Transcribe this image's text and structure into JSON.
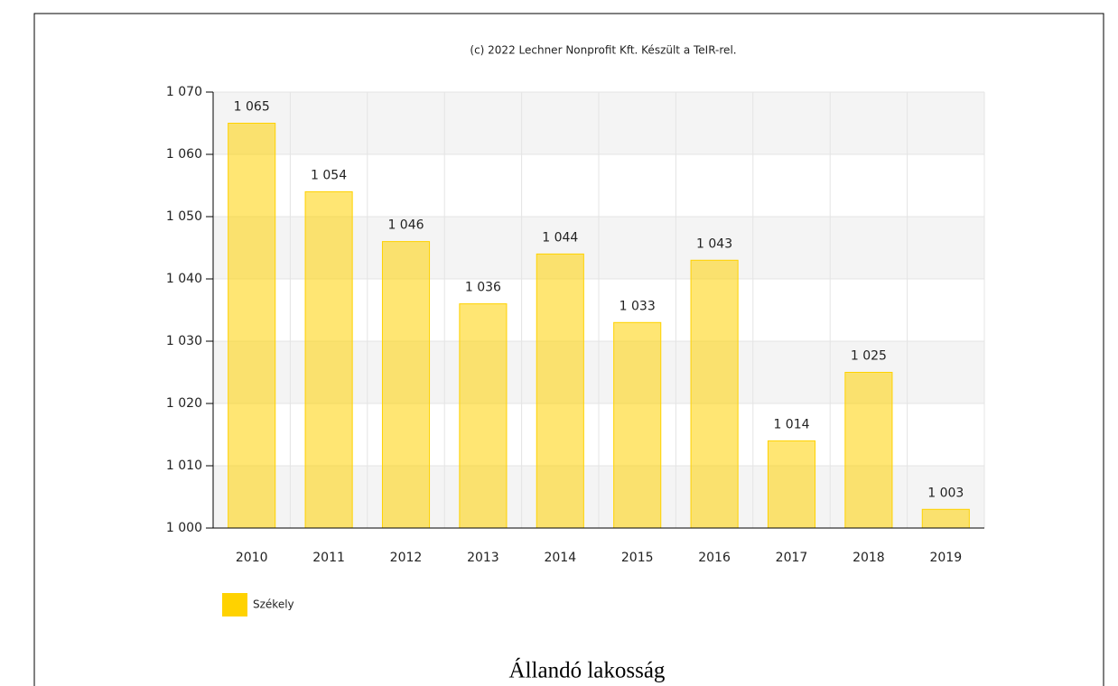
{
  "chart_data": {
    "type": "bar",
    "subtitle": "(c) 2022 Lechner Nonprofit Kft. Készült a TeIR-rel.",
    "caption": "Állandó lakosság",
    "categories": [
      "2010",
      "2011",
      "2012",
      "2013",
      "2014",
      "2015",
      "2016",
      "2017",
      "2018",
      "2019"
    ],
    "series": [
      {
        "name": "Székely",
        "color": "#ffd200",
        "values": [
          1065,
          1054,
          1046,
          1036,
          1044,
          1033,
          1043,
          1014,
          1025,
          1003
        ],
        "value_labels": [
          "1 065",
          "1 054",
          "1 046",
          "1 036",
          "1 044",
          "1 033",
          "1 043",
          "1 014",
          "1 025",
          "1 003"
        ]
      }
    ],
    "ylim": [
      1000,
      1070
    ],
    "yticks": [
      {
        "value": 1000,
        "label": "1 000"
      },
      {
        "value": 1010,
        "label": "1 010"
      },
      {
        "value": 1020,
        "label": "1 020"
      },
      {
        "value": 1030,
        "label": "1 030"
      },
      {
        "value": 1040,
        "label": "1 040"
      },
      {
        "value": 1050,
        "label": "1 050"
      },
      {
        "value": 1060,
        "label": "1 060"
      },
      {
        "value": 1070,
        "label": "1 070"
      }
    ],
    "grid": true,
    "legend": "bottom-left"
  }
}
